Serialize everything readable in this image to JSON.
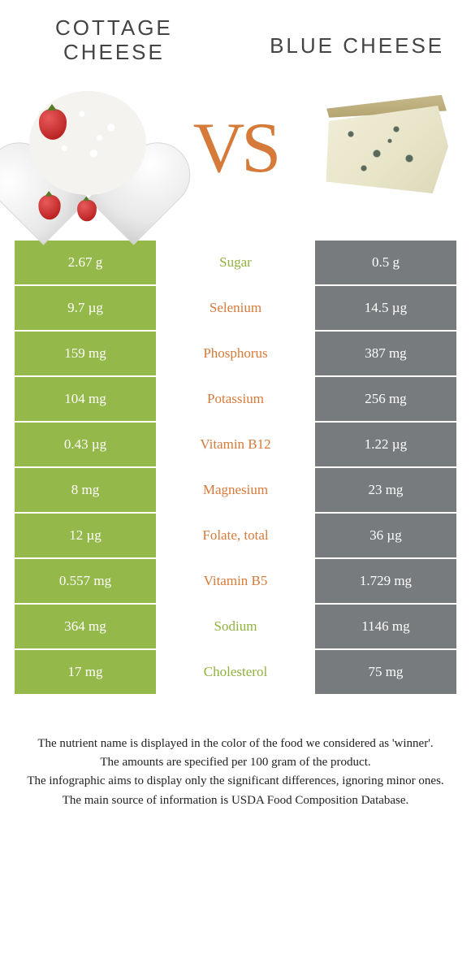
{
  "titles": {
    "left_line1": "COTTAGE",
    "left_line2": "CHEESE",
    "right": "BLUE CHEESE"
  },
  "vs_label": "VS",
  "colors": {
    "green": "#95b84a",
    "grey": "#777b7e",
    "label_green": "#8fb23e",
    "label_orange": "#d67a3a",
    "background": "#ffffff"
  },
  "left_column_color": "green",
  "right_column_color": "grey",
  "rows": [
    {
      "left": "2.67 g",
      "label": "Sugar",
      "right": "0.5 g",
      "winner": "left"
    },
    {
      "left": "9.7 µg",
      "label": "Selenium",
      "right": "14.5 µg",
      "winner": "right"
    },
    {
      "left": "159 mg",
      "label": "Phosphorus",
      "right": "387 mg",
      "winner": "right"
    },
    {
      "left": "104 mg",
      "label": "Potassium",
      "right": "256 mg",
      "winner": "right"
    },
    {
      "left": "0.43 µg",
      "label": "Vitamin B12",
      "right": "1.22 µg",
      "winner": "right"
    },
    {
      "left": "8 mg",
      "label": "Magnesium",
      "right": "23 mg",
      "winner": "right"
    },
    {
      "left": "12 µg",
      "label": "Folate, total",
      "right": "36 µg",
      "winner": "right"
    },
    {
      "left": "0.557 mg",
      "label": "Vitamin B5",
      "right": "1.729 mg",
      "winner": "right"
    },
    {
      "left": "364 mg",
      "label": "Sodium",
      "right": "1146 mg",
      "winner": "left"
    },
    {
      "left": "17 mg",
      "label": "Cholesterol",
      "right": "75 mg",
      "winner": "left"
    }
  ],
  "footnotes": [
    "The nutrient name is displayed in the color of the food we considered as 'winner'.",
    "The amounts are specified per 100 gram of the product.",
    "The infographic aims to display only the significant differences, ignoring minor ones.",
    "The main source of information is USDA Food Composition Database."
  ]
}
